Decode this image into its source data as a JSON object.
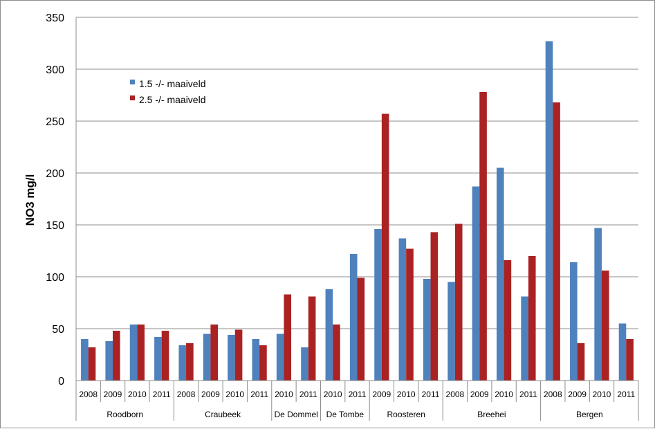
{
  "chart_data": {
    "type": "bar",
    "ylabel": "NO3 mg/l",
    "ylim": [
      0,
      350
    ],
    "yticks": [
      0,
      50,
      100,
      150,
      200,
      250,
      300,
      350
    ],
    "grid": true,
    "legend_position": "top-left",
    "groups": [
      {
        "name": "Roodborn",
        "years": [
          "2008",
          "2009",
          "2010",
          "2011"
        ]
      },
      {
        "name": "Craubeek",
        "years": [
          "2008",
          "2009",
          "2010",
          "2011"
        ]
      },
      {
        "name": "De Dommel",
        "years": [
          "2010",
          "2011"
        ]
      },
      {
        "name": "De Tombe",
        "years": [
          "2010",
          "2011"
        ]
      },
      {
        "name": "Roosteren",
        "years": [
          "2009",
          "2010",
          "2011"
        ]
      },
      {
        "name": "Breehei",
        "years": [
          "2008",
          "2009",
          "2010",
          "2011"
        ]
      },
      {
        "name": "Bergen",
        "years": [
          "2008",
          "2009",
          "2010",
          "2011"
        ]
      }
    ],
    "series": [
      {
        "name": "1.5 -/- maaiveld",
        "color": "#4f81bd",
        "values": [
          40,
          38,
          54,
          42,
          34,
          45,
          44,
          40,
          45,
          32,
          88,
          122,
          146,
          137,
          98,
          95,
          187,
          205,
          81,
          327,
          114,
          147,
          55
        ]
      },
      {
        "name": "2.5 -/- maaiveld",
        "color": "#aa2222",
        "values": [
          32,
          48,
          54,
          48,
          36,
          54,
          49,
          34,
          83,
          81,
          54,
          99,
          257,
          127,
          143,
          151,
          278,
          116,
          120,
          268,
          36,
          106,
          40
        ]
      }
    ]
  }
}
